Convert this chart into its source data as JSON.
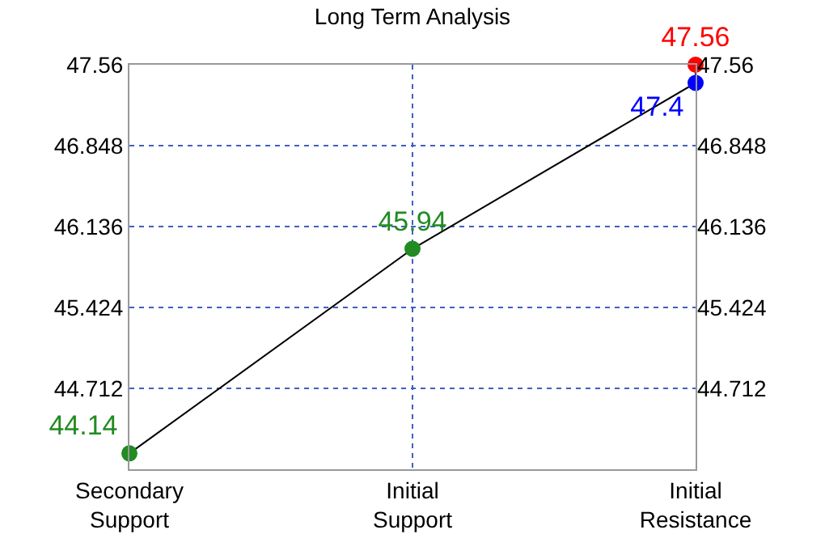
{
  "chart_data": {
    "type": "line",
    "title": "Long Term Analysis",
    "categories": [
      "Secondary Support",
      "Initial Support",
      "Initial Resistance"
    ],
    "ylim": [
      44.0,
      47.56
    ],
    "yticks": [
      44.712,
      45.424,
      46.136,
      46.848,
      47.56
    ],
    "y2lim": [
      44.0,
      47.56
    ],
    "y2ticks": [
      44.712,
      45.424,
      46.136,
      46.848,
      47.56
    ],
    "grid": true,
    "marker": "circle",
    "line_style": "solid",
    "series": [
      {
        "color": "#000000",
        "x": [
          "Secondary Support",
          "Initial Support",
          "Initial Resistance",
          "Initial Resistance"
        ],
        "values": [
          44.14,
          45.94,
          47.4,
          47.56
        ],
        "colors": [
          "#228b22",
          "#228b22",
          "#0000ff",
          "#ff0000"
        ],
        "data_labels": true
      }
    ]
  }
}
